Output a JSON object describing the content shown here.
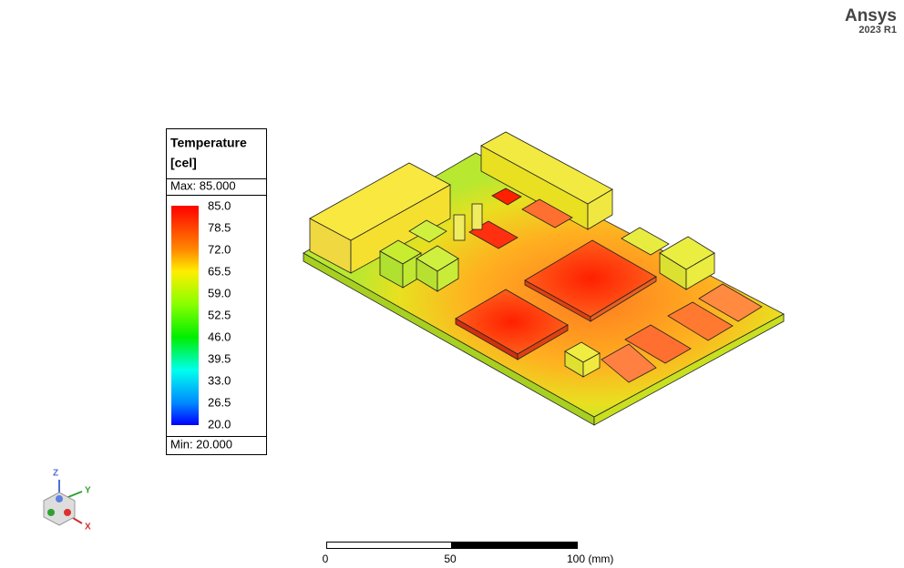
{
  "header": {
    "brand": "Ansys",
    "version": "2023 R1"
  },
  "legend": {
    "title": "Temperature",
    "unit": "[cel]",
    "max": "Max: 85.000",
    "min": "Min: 20.000",
    "labels": [
      "85.0",
      "78.5",
      "72.0",
      "65.5",
      "59.0",
      "52.5",
      "46.0",
      "39.5",
      "33.0",
      "26.5",
      "20.0"
    ]
  },
  "triad": {
    "z": "Z",
    "y": "Y",
    "x": "X"
  },
  "scale_bar": {
    "labels": [
      "0",
      "50",
      "100 (mm)"
    ]
  }
}
